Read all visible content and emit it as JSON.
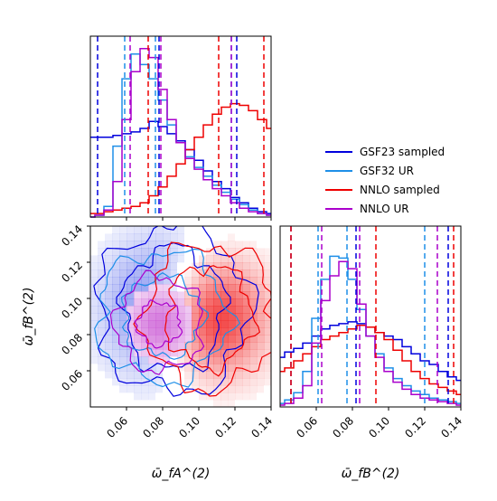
{
  "chart_data": {
    "type": "corner",
    "legend": {
      "placement": "upper-right",
      "entries": [
        {
          "label": "GSF23 sampled",
          "color": "#0000dd"
        },
        {
          "label": "GSF32 UR",
          "color": "#1e8fe8"
        },
        {
          "label": "NNLO sampled",
          "color": "#ee0000"
        },
        {
          "label": "NNLO UR",
          "color": "#aa00cc"
        }
      ]
    },
    "axes": {
      "x_fA": {
        "label": "ω̄_fA^(2)",
        "range": [
          0.04,
          0.14
        ],
        "ticks": [
          "0.06",
          "0.08",
          "0.10",
          "0.12",
          "0.14"
        ]
      },
      "x_fB": {
        "label": "ω̄_fB^(2)",
        "range": [
          0.04,
          0.14
        ],
        "ticks": [
          "0.06",
          "0.08",
          "0.10",
          "0.12",
          "0.14"
        ]
      }
    },
    "marginal_fA": {
      "x": [
        0.04,
        0.045,
        0.05,
        0.055,
        0.06,
        0.065,
        0.07,
        0.075,
        0.08,
        0.085,
        0.09,
        0.095,
        0.1,
        0.105,
        0.11,
        0.115,
        0.12,
        0.125,
        0.13,
        0.135,
        0.14
      ],
      "series": [
        {
          "name": "GSF23 sampled",
          "color": "#0000dd",
          "values": [
            0.45,
            0.45,
            0.45,
            0.46,
            0.47,
            0.48,
            0.5,
            0.54,
            0.51,
            0.47,
            0.43,
            0.38,
            0.32,
            0.26,
            0.2,
            0.16,
            0.11,
            0.08,
            0.05,
            0.03,
            0.02
          ]
        },
        {
          "name": "GSF32 UR",
          "color": "#1e8fe8",
          "values": [
            0.0,
            0.01,
            0.06,
            0.4,
            0.78,
            0.92,
            0.86,
            0.78,
            0.66,
            0.52,
            0.42,
            0.34,
            0.28,
            0.23,
            0.18,
            0.14,
            0.1,
            0.07,
            0.04,
            0.02,
            0.01
          ]
        },
        {
          "name": "NNLO sampled",
          "color": "#ee0000",
          "values": [
            0.02,
            0.02,
            0.03,
            0.04,
            0.05,
            0.06,
            0.08,
            0.12,
            0.17,
            0.23,
            0.3,
            0.38,
            0.45,
            0.52,
            0.58,
            0.62,
            0.64,
            0.63,
            0.6,
            0.55,
            0.5
          ]
        },
        {
          "name": "NNLO UR",
          "color": "#aa00cc",
          "values": [
            0.0,
            0.01,
            0.04,
            0.2,
            0.55,
            0.82,
            0.95,
            0.9,
            0.72,
            0.55,
            0.42,
            0.33,
            0.27,
            0.21,
            0.16,
            0.12,
            0.08,
            0.05,
            0.03,
            0.02,
            0.01
          ]
        }
      ],
      "quantile_lines": [
        {
          "color": "#0000dd",
          "x": [
            0.044,
            0.078,
            0.121
          ]
        },
        {
          "color": "#1e8fe8",
          "x": [
            0.059,
            0.076,
            0.118
          ]
        },
        {
          "color": "#ee0000",
          "x": [
            0.072,
            0.111,
            0.136
          ]
        },
        {
          "color": "#aa00cc",
          "x": [
            0.062,
            0.079,
            0.118
          ]
        }
      ]
    },
    "marginal_fB": {
      "x": [
        0.04,
        0.045,
        0.05,
        0.055,
        0.06,
        0.065,
        0.07,
        0.075,
        0.08,
        0.085,
        0.09,
        0.095,
        0.1,
        0.105,
        0.11,
        0.115,
        0.12,
        0.125,
        0.13,
        0.135,
        0.14
      ],
      "series": [
        {
          "name": "GSF23 sampled",
          "color": "#0000dd",
          "values": [
            0.28,
            0.31,
            0.33,
            0.36,
            0.4,
            0.44,
            0.46,
            0.47,
            0.48,
            0.47,
            0.45,
            0.42,
            0.4,
            0.38,
            0.34,
            0.3,
            0.26,
            0.24,
            0.2,
            0.17,
            0.15
          ]
        },
        {
          "name": "GSF32 UR",
          "color": "#1e8fe8",
          "values": [
            0.02,
            0.04,
            0.08,
            0.2,
            0.5,
            0.72,
            0.85,
            0.84,
            0.72,
            0.55,
            0.4,
            0.3,
            0.22,
            0.16,
            0.12,
            0.09,
            0.07,
            0.05,
            0.04,
            0.03,
            0.02
          ]
        },
        {
          "name": "NNLO sampled",
          "color": "#ee0000",
          "values": [
            0.2,
            0.22,
            0.26,
            0.3,
            0.34,
            0.38,
            0.4,
            0.42,
            0.44,
            0.46,
            0.45,
            0.42,
            0.38,
            0.32,
            0.26,
            0.2,
            0.16,
            0.13,
            0.11,
            0.09,
            0.07
          ]
        },
        {
          "name": "NNLO UR",
          "color": "#aa00cc",
          "values": [
            0.01,
            0.02,
            0.05,
            0.12,
            0.36,
            0.6,
            0.74,
            0.82,
            0.78,
            0.58,
            0.4,
            0.28,
            0.2,
            0.14,
            0.1,
            0.07,
            0.05,
            0.04,
            0.03,
            0.02,
            0.01
          ]
        }
      ],
      "quantile_lines": [
        {
          "color": "#0000dd",
          "x": [
            0.046,
            0.082,
            0.133
          ]
        },
        {
          "color": "#1e8fe8",
          "x": [
            0.061,
            0.077,
            0.12
          ]
        },
        {
          "color": "#ee0000",
          "x": [
            0.046,
            0.093,
            0.136
          ]
        },
        {
          "color": "#aa00cc",
          "x": [
            0.063,
            0.084,
            0.127
          ]
        }
      ]
    },
    "joint": {
      "x_range": [
        0.04,
        0.14
      ],
      "y_range": [
        0.04,
        0.14
      ],
      "y_ticks": [
        "0.06",
        "0.08",
        "0.10",
        "0.12",
        "0.14"
      ],
      "contours": [
        {
          "color": "#0000dd",
          "center": [
            0.086,
            0.094
          ],
          "radii": [
            [
              0.028,
              0.034
            ],
            [
              0.042,
              0.046
            ]
          ]
        },
        {
          "color": "#1e8fe8",
          "center": [
            0.08,
            0.09
          ],
          "radii": [
            [
              0.022,
              0.022
            ],
            [
              0.036,
              0.036
            ]
          ]
        },
        {
          "color": "#ee0000",
          "center": [
            0.106,
            0.09
          ],
          "radii": [
            [
              0.024,
              0.028
            ],
            [
              0.036,
              0.04
            ]
          ]
        },
        {
          "color": "#aa00cc",
          "center": [
            0.078,
            0.086
          ],
          "radii": [
            [
              0.012,
              0.012
            ],
            [
              0.024,
              0.026
            ]
          ]
        }
      ]
    }
  }
}
